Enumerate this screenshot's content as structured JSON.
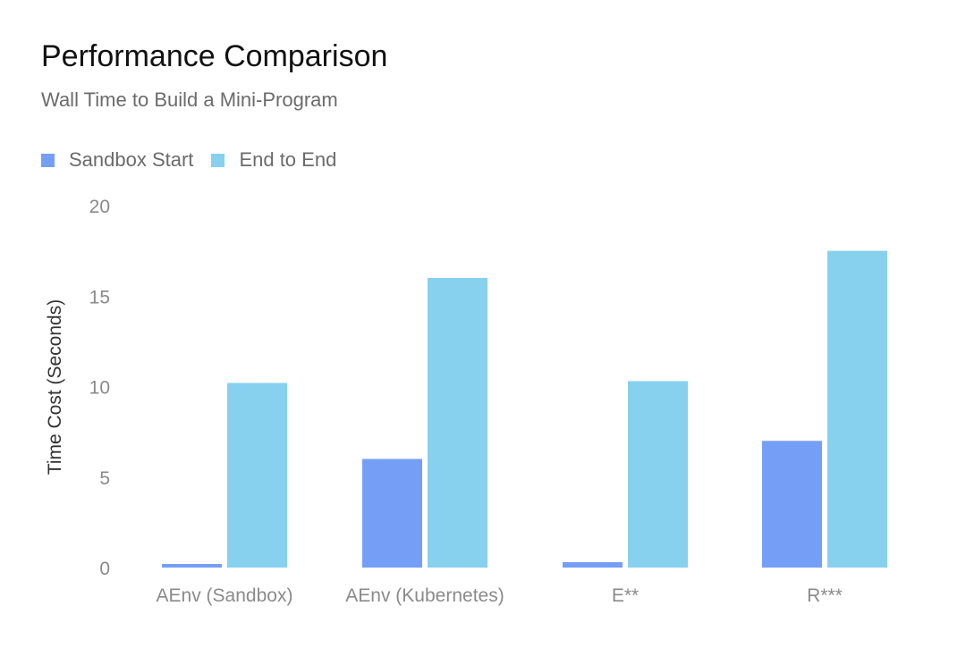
{
  "chart_data": {
    "type": "bar",
    "title": "Performance Comparison",
    "subtitle": "Wall Time to Build a Mini-Program",
    "xlabel": "",
    "ylabel": "Time Cost (Seconds)",
    "ylim": [
      0,
      20
    ],
    "yticks": [
      0,
      5,
      10,
      15,
      20
    ],
    "grid": false,
    "legend_position": "top-left",
    "categories": [
      "AEnv (Sandbox)",
      "AEnv (Kubernetes)",
      "E**",
      "R***"
    ],
    "series": [
      {
        "name": "Sandbox Start",
        "color": "#759ef7",
        "values": [
          0.2,
          6.0,
          0.3,
          7.0
        ]
      },
      {
        "name": "End to End",
        "color": "#87d1ee",
        "values": [
          10.2,
          16.0,
          10.3,
          17.5
        ]
      }
    ]
  }
}
